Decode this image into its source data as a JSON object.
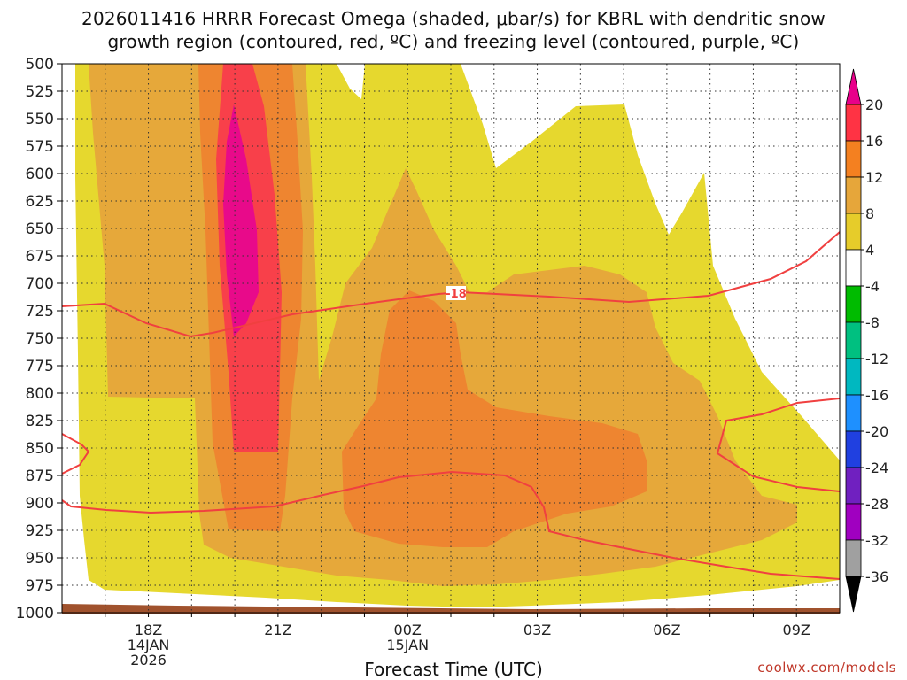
{
  "chart_data": {
    "type": "heatmap",
    "title_line1": "2026011416 HRRR Forecast Omega (shaded, μbar/s) for KBRL with dendritic snow",
    "title_line2": "growth region (contoured, red, ºC) and freezing level (contoured, purple, ºC)",
    "xlabel": "Forecast Time (UTC)",
    "credit": "coolwx.com/models",
    "x_ticks": [
      {
        "hour": 18,
        "lines": [
          "18Z",
          "14JAN",
          "2026"
        ]
      },
      {
        "hour": 21,
        "lines": [
          "21Z"
        ]
      },
      {
        "hour": 24,
        "lines": [
          "00Z",
          "15JAN"
        ]
      },
      {
        "hour": 27,
        "lines": [
          "03Z"
        ]
      },
      {
        "hour": 30,
        "lines": [
          "06Z"
        ]
      },
      {
        "hour": 33,
        "lines": [
          "09Z"
        ]
      }
    ],
    "xlim": [
      16,
      34
    ],
    "ylim": [
      1000,
      500
    ],
    "y_ticks": [
      500,
      525,
      550,
      575,
      600,
      625,
      650,
      675,
      700,
      725,
      750,
      775,
      800,
      825,
      850,
      875,
      900,
      925,
      950,
      975,
      1000
    ],
    "grid": true,
    "contour_label": "-18",
    "colorbar": {
      "labels": [
        "20",
        "16",
        "12",
        "8",
        "4",
        "-4",
        "-8",
        "-12",
        "-16",
        "-20",
        "-24",
        "-28",
        "-32",
        "-36"
      ],
      "colors": [
        "#ff3344",
        "#f48020",
        "#e6a63a",
        "#e6cc2a",
        "#ffffff",
        "#00bb00",
        "#00c080",
        "#00b8c0",
        "#1e90ff",
        "#2040e0",
        "#7020c0",
        "#a000c0",
        "#a0a0a0"
      ],
      "top_color": "#e8008a",
      "bottom_color": "#000000"
    },
    "shading_colors": {
      "4": "#e6d82e",
      "8": "#e6a83a",
      "12": "#ee8530",
      "16": "#f8404a",
      "20": "#e80a8a"
    },
    "terrain_color": "#a0522d",
    "contour_color": "#f04040"
  }
}
